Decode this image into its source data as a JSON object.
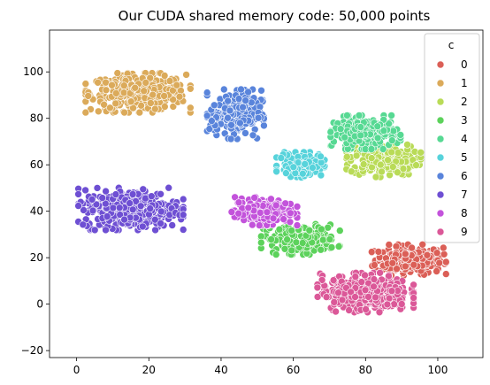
{
  "chart_data": {
    "type": "scatter",
    "title": "Our CUDA shared memory code: 50,000 points",
    "xlabel": "",
    "ylabel": "",
    "xlim": [
      -7.5,
      112.5
    ],
    "ylim": [
      -23,
      118
    ],
    "x_ticks": [
      0,
      20,
      40,
      60,
      80,
      100
    ],
    "y_ticks": [
      -20,
      0,
      20,
      40,
      60,
      80,
      100
    ],
    "grid": false,
    "point_edge_color": "#ffffff",
    "legend": {
      "title": "c",
      "placement": "top-right",
      "entries": [
        {
          "label": "0",
          "color": "#db5f57"
        },
        {
          "label": "1",
          "color": "#dbaa5a"
        },
        {
          "label": "2",
          "color": "#b9db57"
        },
        {
          "label": "3",
          "color": "#5cd25b"
        },
        {
          "label": "4",
          "color": "#57d993"
        },
        {
          "label": "5",
          "color": "#57d3db"
        },
        {
          "label": "6",
          "color": "#5984db"
        },
        {
          "label": "7",
          "color": "#6e4fd3"
        },
        {
          "label": "8",
          "color": "#c353db"
        },
        {
          "label": "9",
          "color": "#db5898"
        }
      ]
    },
    "clusters": [
      {
        "c": "0",
        "center": [
          92,
          19
        ],
        "spread": [
          8.5,
          5.5
        ],
        "n": 240
      },
      {
        "c": "1",
        "center": [
          17,
          91
        ],
        "spread": [
          12,
          7
        ],
        "n": 380
      },
      {
        "c": "2",
        "center": [
          85,
          62
        ],
        "spread": [
          8.5,
          6
        ],
        "n": 230
      },
      {
        "c": "3",
        "center": [
          62,
          28
        ],
        "spread": [
          9,
          5.5
        ],
        "n": 210
      },
      {
        "c": "4",
        "center": [
          80,
          74
        ],
        "spread": [
          8,
          6
        ],
        "n": 230
      },
      {
        "c": "5",
        "center": [
          62,
          60
        ],
        "spread": [
          5.5,
          4.5
        ],
        "n": 150
      },
      {
        "c": "6",
        "center": [
          44,
          82
        ],
        "spread": [
          6.5,
          9
        ],
        "n": 240
      },
      {
        "c": "7",
        "center": [
          15,
          41
        ],
        "spread": [
          12,
          7.5
        ],
        "n": 400
      },
      {
        "c": "8",
        "center": [
          52,
          40
        ],
        "spread": [
          7.5,
          5
        ],
        "n": 200
      },
      {
        "c": "9",
        "center": [
          80,
          5
        ],
        "spread": [
          11,
          7
        ],
        "n": 360
      }
    ]
  }
}
